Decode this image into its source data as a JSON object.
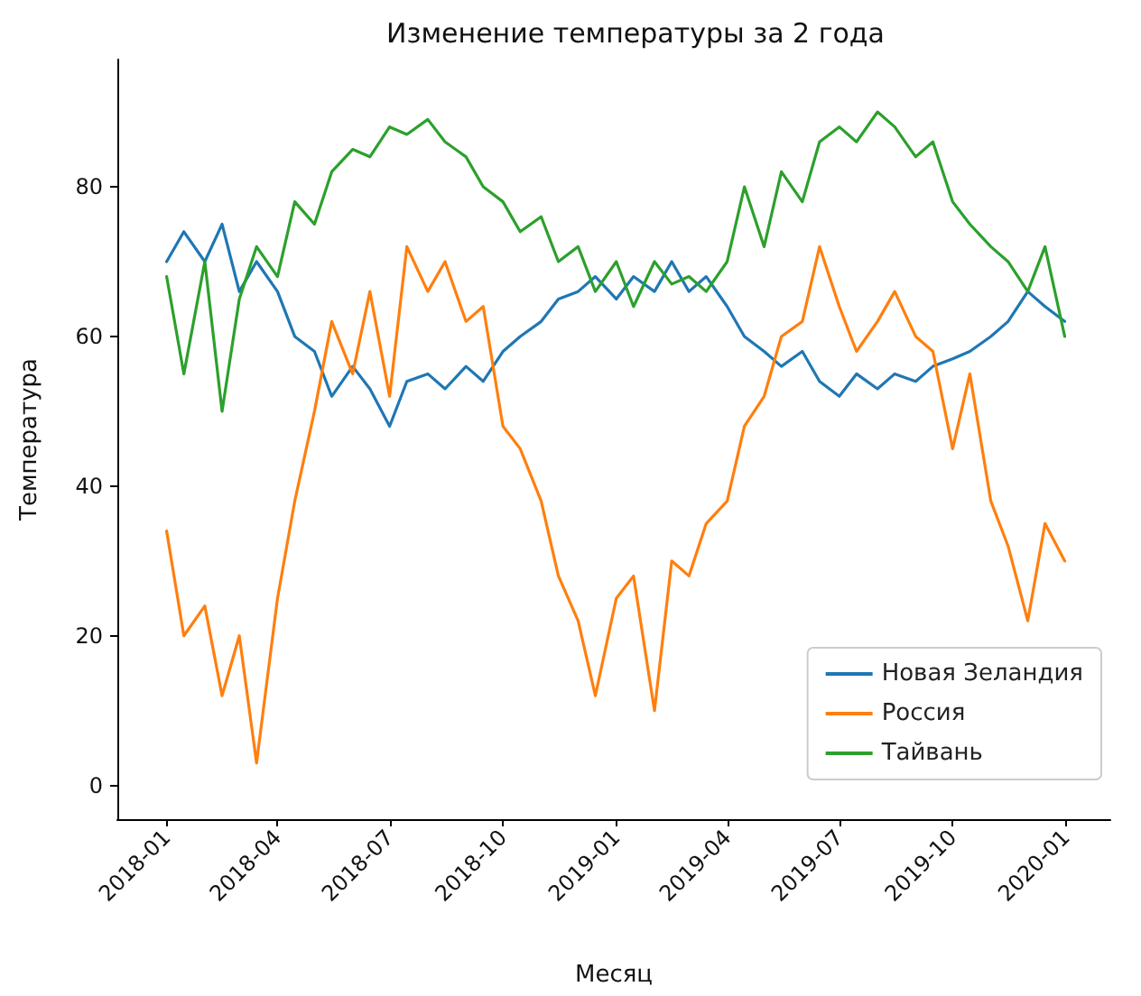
{
  "chart_data": {
    "type": "line",
    "title": "Изменение температуры за 2 года",
    "xlabel": "Месяц",
    "ylabel": "Температура",
    "x": [
      "2018-01-01",
      "2018-01-15",
      "2018-02-01",
      "2018-02-15",
      "2018-03-01",
      "2018-03-15",
      "2018-04-01",
      "2018-04-15",
      "2018-05-01",
      "2018-05-15",
      "2018-06-01",
      "2018-06-15",
      "2018-07-01",
      "2018-07-15",
      "2018-08-01",
      "2018-08-15",
      "2018-09-01",
      "2018-09-15",
      "2018-10-01",
      "2018-10-15",
      "2018-11-01",
      "2018-11-15",
      "2018-12-01",
      "2018-12-15",
      "2019-01-01",
      "2019-01-15",
      "2019-02-01",
      "2019-02-15",
      "2019-03-01",
      "2019-03-15",
      "2019-04-01",
      "2019-04-15",
      "2019-05-01",
      "2019-05-15",
      "2019-06-01",
      "2019-06-15",
      "2019-07-01",
      "2019-07-15",
      "2019-08-01",
      "2019-08-15",
      "2019-09-01",
      "2019-09-15",
      "2019-10-01",
      "2019-10-15",
      "2019-11-01",
      "2019-11-15",
      "2019-12-01",
      "2019-12-15",
      "2019-12-31"
    ],
    "series": [
      {
        "name": "Новая Зеландия",
        "color": "#1f77b4",
        "values": [
          70,
          74,
          70,
          75,
          66,
          70,
          66,
          60,
          58,
          52,
          56,
          53,
          48,
          54,
          55,
          53,
          56,
          54,
          58,
          60,
          62,
          65,
          66,
          68,
          65,
          68,
          66,
          70,
          66,
          68,
          64,
          60,
          58,
          56,
          58,
          54,
          52,
          55,
          53,
          55,
          54,
          56,
          57,
          58,
          60,
          62,
          66,
          64,
          62
        ]
      },
      {
        "name": "Россия",
        "color": "#ff7f0e",
        "values": [
          34,
          20,
          24,
          12,
          20,
          3,
          25,
          38,
          50,
          62,
          55,
          66,
          52,
          72,
          66,
          70,
          62,
          64,
          48,
          45,
          38,
          28,
          22,
          12,
          25,
          28,
          10,
          30,
          28,
          35,
          38,
          48,
          52,
          60,
          62,
          72,
          64,
          58,
          62,
          66,
          60,
          58,
          45,
          55,
          38,
          32,
          22,
          35,
          30
        ]
      },
      {
        "name": "Тайвань",
        "color": "#2ca02c",
        "values": [
          68,
          55,
          70,
          50,
          65,
          72,
          68,
          78,
          75,
          82,
          85,
          84,
          88,
          87,
          89,
          86,
          84,
          80,
          78,
          74,
          76,
          70,
          72,
          66,
          70,
          64,
          70,
          67,
          68,
          66,
          70,
          80,
          72,
          82,
          78,
          86,
          88,
          86,
          90,
          88,
          84,
          86,
          78,
          75,
          72,
          70,
          66,
          72,
          60
        ]
      }
    ],
    "xlim": [
      "2017-11-22",
      "2020-02-06"
    ],
    "xticks": [
      "2018-01",
      "2018-04",
      "2018-07",
      "2018-10",
      "2019-01",
      "2019-04",
      "2019-07",
      "2019-10",
      "2020-01"
    ],
    "ylim": [
      -4.5,
      97
    ],
    "yticks": [
      0,
      20,
      40,
      60,
      80
    ],
    "grid": false,
    "legend": "bottom right",
    "marker": "none",
    "line_style": "solid"
  }
}
